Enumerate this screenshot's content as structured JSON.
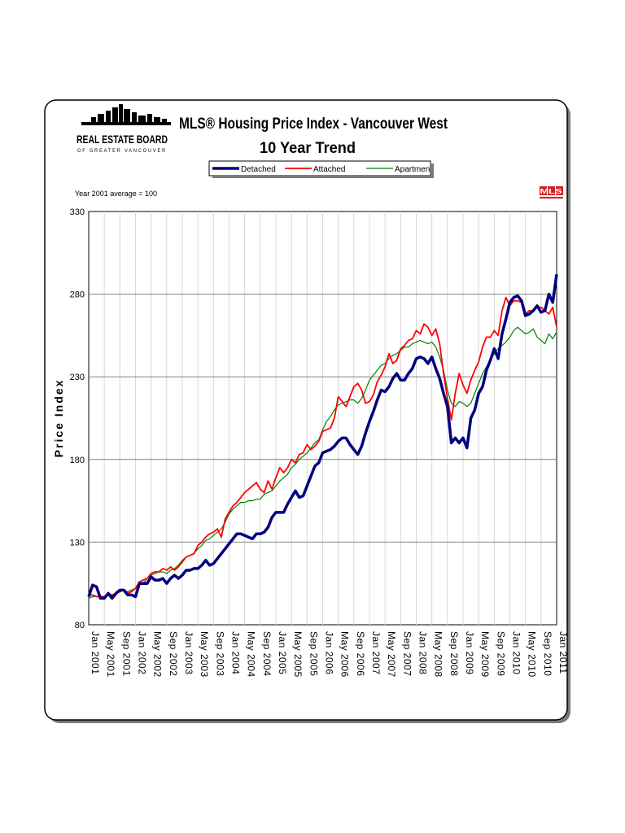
{
  "logo": {
    "name": "REAL ESTATE BOARD",
    "subtitle": "OF GREATER VANCOUVER"
  },
  "mls_badge": "MLS",
  "chart_data": {
    "type": "line",
    "title": "MLS® Housing Price Index - Vancouver West",
    "subtitle": "10 Year Trend",
    "note": "Year 2001 average = 100",
    "ylabel": "Price Index",
    "xlabel": "",
    "ylim": [
      80,
      330
    ],
    "yticks": [
      80,
      130,
      180,
      230,
      280,
      330
    ],
    "legend_position": "top-center",
    "grid": {
      "horizontal": true,
      "vertical": true
    },
    "x_tick_labels": [
      "Jan 2001",
      "May 2001",
      "Sep 2001",
      "Jan 2002",
      "May 2002",
      "Sep 2002",
      "Jan 2003",
      "May 2003",
      "Sep 2003",
      "Jan 2004",
      "May 2004",
      "Sep 2004",
      "Jan 2005",
      "May 2005",
      "Sep 2005",
      "Jan 2006",
      "May 2006",
      "Sep 2006",
      "Jan 2007",
      "May 2007",
      "Sep 2007",
      "Jan 2008",
      "May 2008",
      "Sep 2008",
      "Jan 2009",
      "May 2009",
      "Sep 2009",
      "Jan 2010",
      "May 2010",
      "Sep 2010",
      "Jan 2011"
    ],
    "series": [
      {
        "name": "Detached",
        "color": "#000080",
        "values": [
          97,
          104,
          103,
          96,
          96,
          99,
          96,
          99,
          101,
          101,
          98,
          98,
          97,
          105,
          105,
          105,
          109,
          107,
          107,
          108,
          105,
          108,
          110,
          108,
          110,
          113,
          113,
          114,
          114,
          116,
          119,
          116,
          117,
          120,
          123,
          126,
          129,
          132,
          135,
          135,
          134,
          133,
          132,
          135,
          135,
          136,
          139,
          145,
          148,
          148,
          148,
          153,
          157,
          161,
          157,
          158,
          164,
          170,
          176,
          178,
          184,
          185,
          186,
          188,
          191,
          193,
          193,
          189,
          186,
          183,
          188,
          196,
          203,
          209,
          216,
          222,
          221,
          224,
          229,
          232,
          228,
          228,
          232,
          235,
          241,
          242,
          241,
          238,
          242,
          235,
          229,
          220,
          212,
          190,
          193,
          190,
          193,
          187,
          205,
          210,
          220,
          224,
          234,
          240,
          247,
          241,
          256,
          265,
          275,
          278,
          279,
          276,
          267,
          268,
          270,
          273,
          269,
          270,
          280,
          275,
          292
        ]
      },
      {
        "name": "Attached",
        "color": "#ff0000",
        "values": [
          98,
          98,
          97,
          97,
          97,
          99,
          98,
          99,
          100,
          101,
          99,
          100,
          102,
          106,
          107,
          108,
          111,
          112,
          112,
          114,
          113,
          115,
          113,
          115,
          118,
          121,
          122,
          123,
          128,
          130,
          133,
          135,
          136,
          138,
          133,
          144,
          148,
          152,
          154,
          157,
          160,
          162,
          164,
          166,
          162,
          160,
          167,
          162,
          169,
          175,
          172,
          175,
          180,
          178,
          183,
          184,
          189,
          186,
          188,
          191,
          197,
          198,
          199,
          205,
          218,
          215,
          212,
          218,
          224,
          226,
          222,
          214,
          215,
          219,
          227,
          231,
          236,
          244,
          238,
          240,
          247,
          249,
          252,
          253,
          258,
          256,
          262,
          260,
          255,
          259,
          250,
          232,
          217,
          204,
          220,
          232,
          225,
          220,
          228,
          234,
          239,
          248,
          254,
          254,
          258,
          255,
          270,
          278,
          273,
          276,
          276,
          275,
          268,
          270,
          270,
          272,
          272,
          270,
          268,
          272,
          260
        ]
      },
      {
        "name": "Apartment",
        "color": "#008000",
        "values": [
          96,
          97,
          97,
          97,
          97,
          98,
          98,
          99,
          100,
          101,
          100,
          101,
          102,
          104,
          105,
          108,
          110,
          111,
          112,
          112,
          111,
          113,
          114,
          116,
          119,
          121,
          122,
          123,
          126,
          128,
          131,
          132,
          134,
          136,
          138,
          142,
          147,
          150,
          152,
          154,
          154,
          155,
          155,
          156,
          156,
          159,
          160,
          161,
          164,
          167,
          169,
          171,
          175,
          177,
          180,
          182,
          184,
          187,
          190,
          192,
          198,
          203,
          206,
          210,
          213,
          214,
          215,
          216,
          216,
          214,
          217,
          222,
          228,
          231,
          234,
          237,
          238,
          241,
          243,
          244,
          246,
          248,
          248,
          250,
          251,
          252,
          251,
          250,
          251,
          248,
          242,
          234,
          222,
          214,
          212,
          215,
          214,
          212,
          214,
          220,
          226,
          232,
          236,
          240,
          244,
          247,
          249,
          251,
          254,
          258,
          260,
          258,
          256,
          257,
          259,
          254,
          252,
          250,
          256,
          253,
          257
        ]
      }
    ]
  }
}
